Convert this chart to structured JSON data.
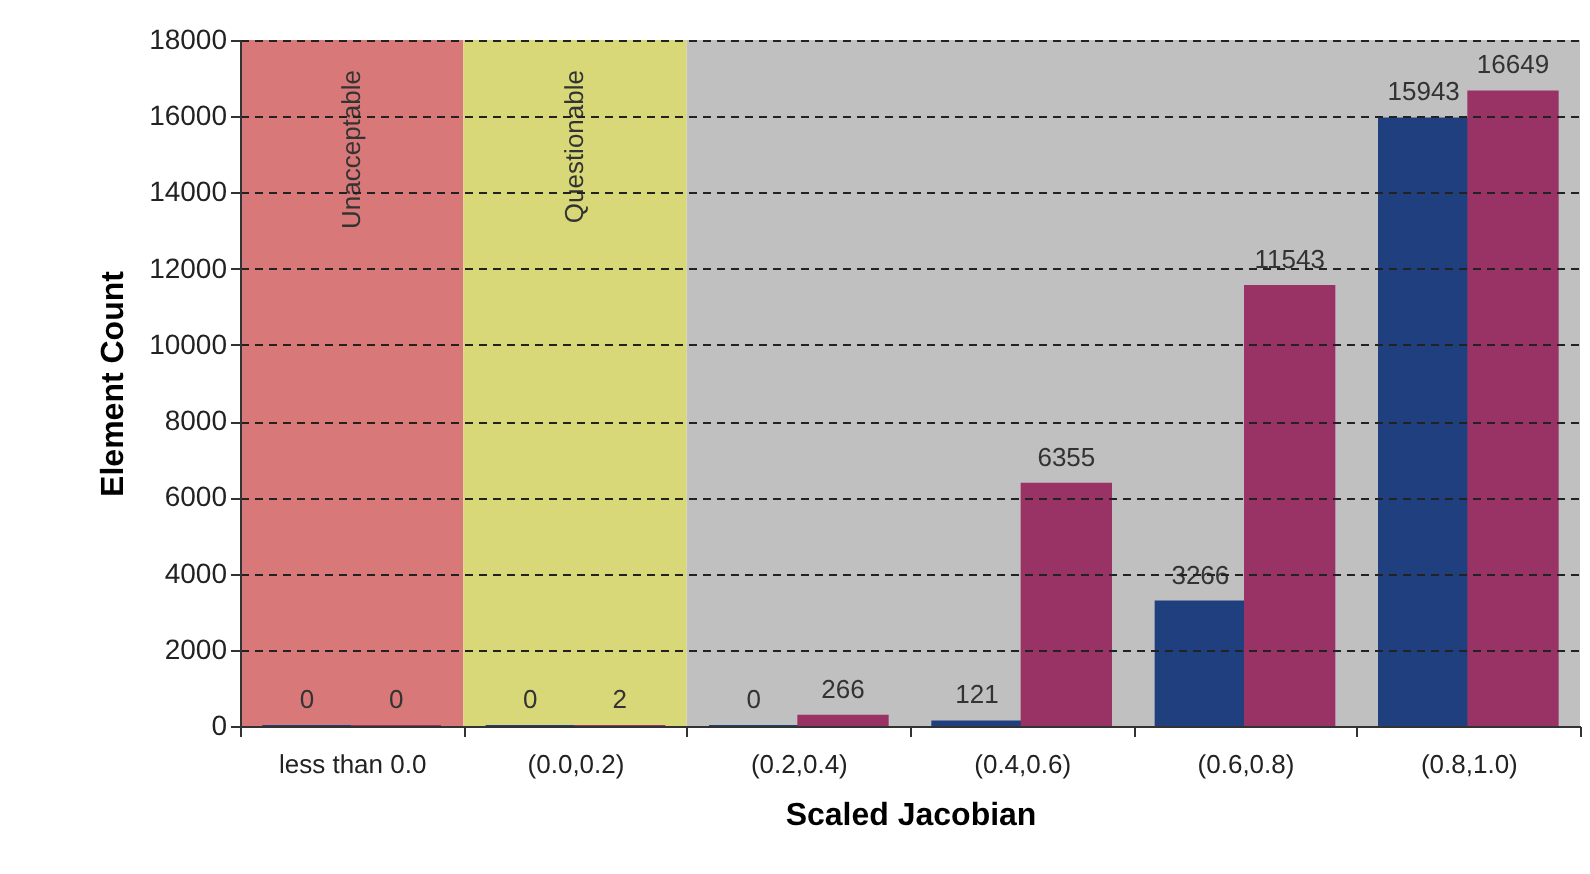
{
  "chart_data": {
    "type": "bar",
    "xlabel": "Scaled Jacobian",
    "ylabel": "Element Count",
    "categories": [
      "less than 0.0",
      "(0.0,0.2)",
      "(0.2,0.4)",
      "(0.4,0.6)",
      "(0.6,0.8)",
      "(0.8,1.0)"
    ],
    "series": [
      {
        "color": "#1f3f7f",
        "values": [
          0,
          0,
          0,
          121,
          3266,
          15943
        ]
      },
      {
        "color": "#993366",
        "values": [
          0,
          2,
          266,
          6355,
          11543,
          16649
        ]
      }
    ],
    "ylim": [
      0,
      18000
    ],
    "yticks": [
      0,
      2000,
      4000,
      6000,
      8000,
      10000,
      12000,
      14000,
      16000,
      18000
    ],
    "grid": "y",
    "data_labels": true,
    "bands": [
      {
        "axis": "x",
        "from": "less than 0.0",
        "to": "less than 0.0",
        "label": "Unacceptable",
        "color": "#d87878"
      },
      {
        "axis": "x",
        "from": "(0.0,0.2)",
        "to": "(0.0,0.2)",
        "label": "Questionable",
        "color": "#d8d878"
      },
      {
        "axis": "x",
        "from": "(0.2,0.4)",
        "to": "(0.8,1.0)",
        "label": null,
        "color": "#c0c0c0"
      }
    ]
  }
}
